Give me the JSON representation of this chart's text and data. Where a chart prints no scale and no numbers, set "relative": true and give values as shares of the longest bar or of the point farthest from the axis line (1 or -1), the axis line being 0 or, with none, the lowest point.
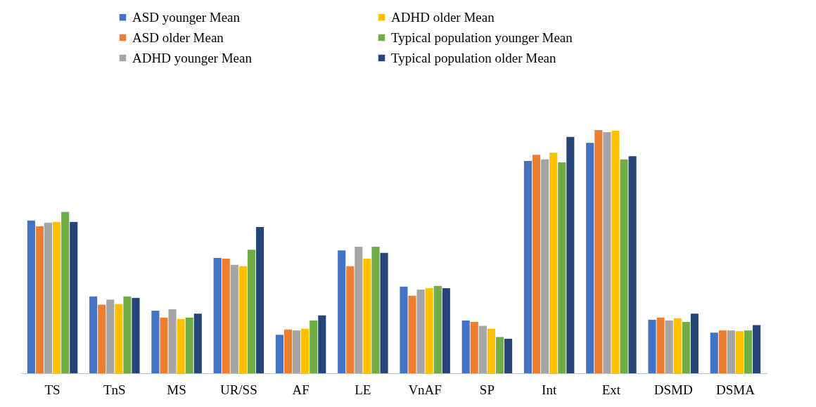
{
  "chart_data": {
    "type": "bar",
    "relative": true,
    "legend": "top",
    "grid": false,
    "categories": [
      "TS",
      "TnS",
      "MS",
      "UR/SS",
      "AF",
      "LE",
      "VnAF",
      "SP",
      "Int",
      "Ext",
      "DSMD",
      "DSMA"
    ],
    "series": [
      {
        "name": "ASD younger Mean",
        "color": "#4472c4",
        "values": [
          0.628,
          0.316,
          0.257,
          0.474,
          0.158,
          0.505,
          0.356,
          0.217,
          0.873,
          0.947,
          0.22,
          0.167
        ]
      },
      {
        "name": "ASD older Mean",
        "color": "#ed7d31",
        "values": [
          0.604,
          0.282,
          0.229,
          0.471,
          0.18,
          0.44,
          0.319,
          0.211,
          0.898,
          1,
          0.229,
          0.176
        ]
      },
      {
        "name": "ADHD younger  Mean",
        "color": "#a5a5a5",
        "values": [
          0.619,
          0.303,
          0.263,
          0.446,
          0.176,
          0.52,
          0.344,
          0.195,
          0.879,
          0.991,
          0.217,
          0.176
        ]
      },
      {
        "name": "ADHD older Mean",
        "color": "#ffc000",
        "values": [
          0.622,
          0.285,
          0.223,
          0.44,
          0.183,
          0.471,
          0.35,
          0.183,
          0.907,
          0.997,
          0.226,
          0.173
        ]
      },
      {
        "name": "Typical population younger  Mean",
        "color": "#70ad47",
        "values": [
          0.663,
          0.316,
          0.229,
          0.508,
          0.217,
          0.52,
          0.359,
          0.149,
          0.867,
          0.879,
          0.211,
          0.176
        ]
      },
      {
        "name": "Typical population older Mean",
        "color": "#264478",
        "values": [
          0.622,
          0.31,
          0.245,
          0.601,
          0.238,
          0.495,
          0.35,
          0.142,
          0.972,
          0.892,
          0.245,
          0.198
        ]
      }
    ]
  }
}
